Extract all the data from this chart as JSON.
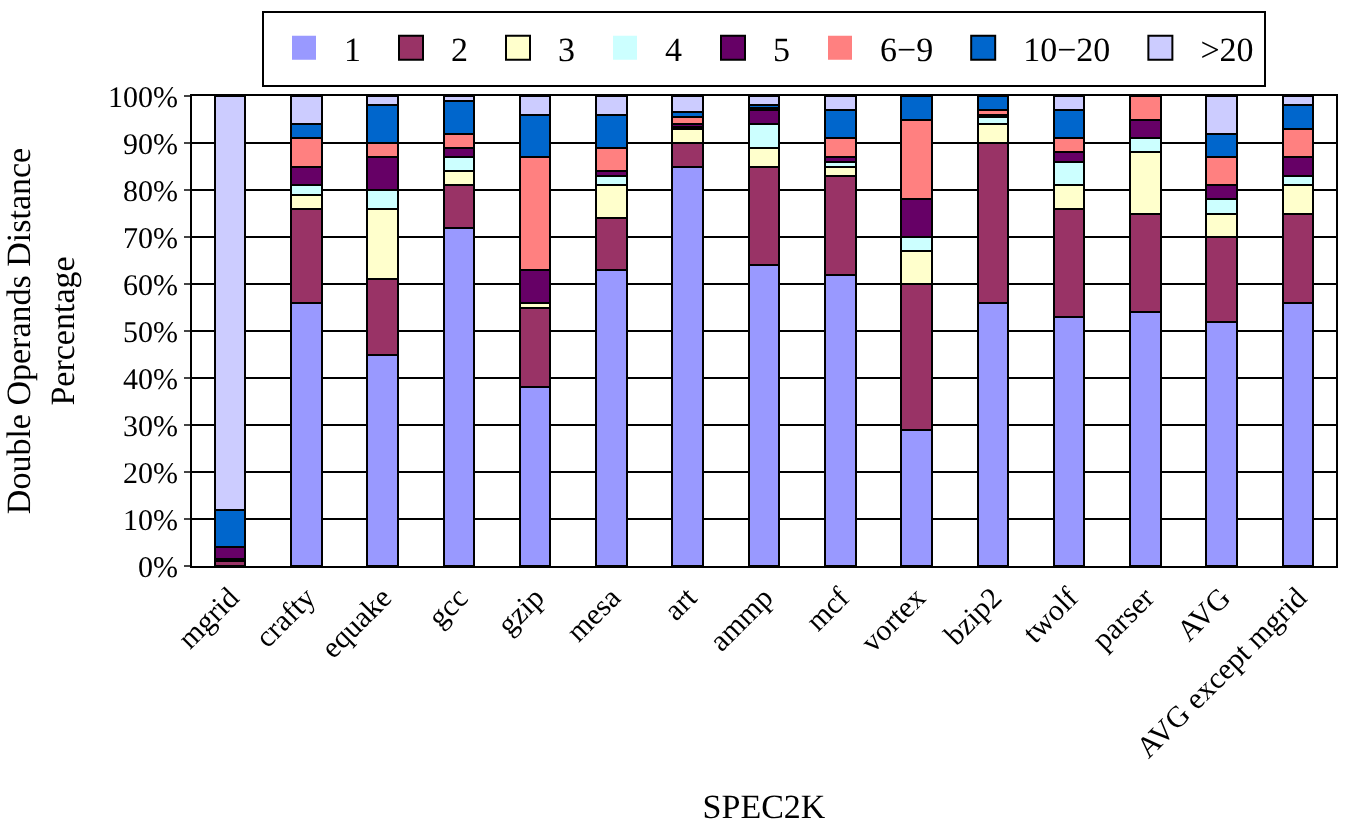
{
  "chart_data": {
    "type": "bar",
    "stacked": true,
    "xlabel": "SPEC2K",
    "ylabel": "Double Operands Distance\nPercentage",
    "categories": [
      "mgrid",
      "crafty",
      "equake",
      "gcc",
      "gzip",
      "mesa",
      "art",
      "ammp",
      "mcf",
      "vortex",
      "bzip2",
      "twolf",
      "parser",
      "AVG",
      "AVG except mgrid"
    ],
    "series": [
      {
        "name": "1",
        "color": "#9999ff",
        "values": [
          0,
          56,
          45,
          72,
          38,
          63,
          85,
          64,
          62,
          29,
          56,
          53,
          54,
          52,
          56
        ]
      },
      {
        "name": "2",
        "color": "#993366",
        "values": [
          1,
          20,
          16,
          9,
          17,
          11,
          5,
          21,
          21,
          31,
          34,
          23,
          21,
          18,
          19
        ]
      },
      {
        "name": "3",
        "color": "#ffffcc",
        "values": [
          0.5,
          3,
          15,
          3,
          1,
          7,
          3,
          4,
          2,
          7,
          4,
          5,
          13,
          5,
          6
        ]
      },
      {
        "name": "4",
        "color": "#ccffff",
        "values": [
          0,
          2,
          4,
          3,
          0,
          2,
          0.5,
          5,
          1,
          3,
          1.5,
          5,
          3,
          3,
          2
        ]
      },
      {
        "name": "5",
        "color": "#660066",
        "values": [
          2.5,
          4,
          7,
          2,
          7,
          1,
          0.5,
          3,
          1,
          8,
          0.5,
          2,
          4,
          3,
          4
        ]
      },
      {
        "name": "6−9",
        "color": "#ff8080",
        "values": [
          0,
          6,
          3,
          3,
          24,
          5,
          1.5,
          0.5,
          4,
          17,
          1,
          3,
          5,
          6,
          6
        ]
      },
      {
        "name": "10−20",
        "color": "#0066cc",
        "values": [
          8,
          3,
          8,
          7,
          9,
          7,
          1,
          0.5,
          6,
          5,
          3,
          6,
          0,
          5,
          5
        ]
      },
      {
        "name": ">20",
        "color": "#ccccff",
        "values": [
          88,
          6,
          2,
          1,
          4,
          4,
          3.5,
          2,
          3,
          0,
          0,
          3,
          0,
          8,
          2
        ]
      }
    ],
    "ylim": [
      0,
      100
    ],
    "yticks": [
      {
        "value": 0,
        "label": "0%"
      },
      {
        "value": 10,
        "label": "10%"
      },
      {
        "value": 20,
        "label": "20%"
      },
      {
        "value": 30,
        "label": "30%"
      },
      {
        "value": 40,
        "label": "40%"
      },
      {
        "value": 50,
        "label": "50%"
      },
      {
        "value": 60,
        "label": "60%"
      },
      {
        "value": 70,
        "label": "70%"
      },
      {
        "value": 80,
        "label": "80%"
      },
      {
        "value": 90,
        "label": "90%"
      },
      {
        "value": 100,
        "label": "100%"
      }
    ],
    "grid": "y",
    "legend": "top"
  }
}
